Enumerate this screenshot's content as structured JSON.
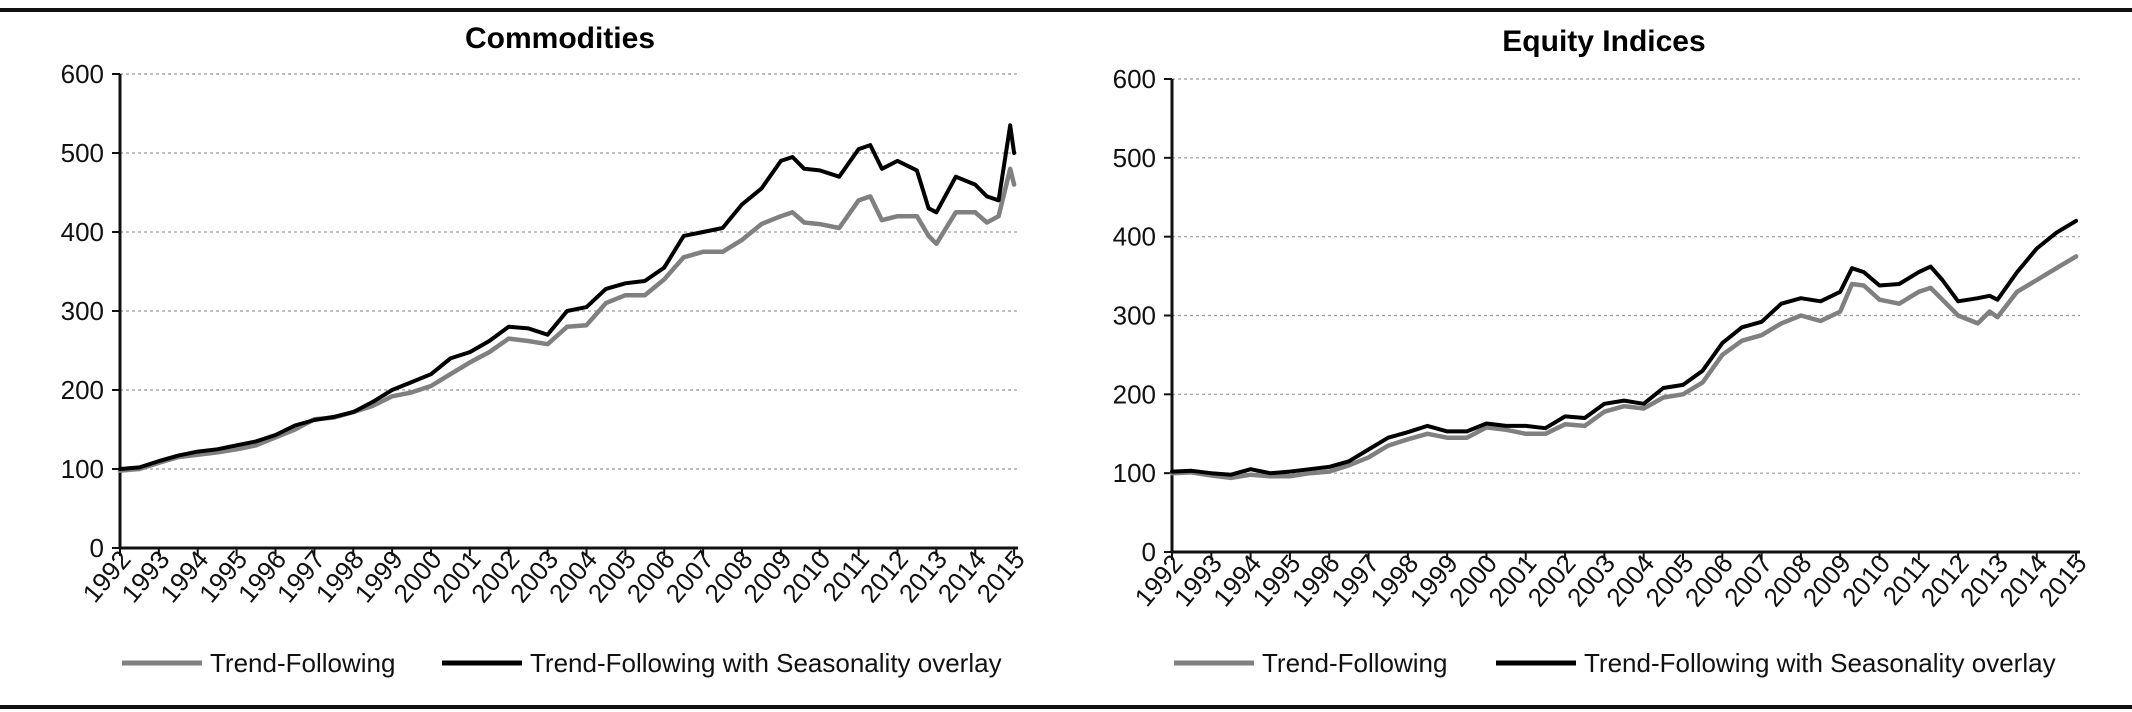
{
  "chart_data": [
    {
      "type": "line",
      "title": "Commodities",
      "xlabel": "",
      "ylabel": "",
      "ylim": [
        0,
        600
      ],
      "yticks": [
        0,
        100,
        200,
        300,
        400,
        500,
        600
      ],
      "xlim": [
        1992,
        2015.1
      ],
      "xticks": [
        "1992",
        "1993",
        "1994",
        "1995",
        "1996",
        "1997",
        "1998",
        "1999",
        "2000",
        "2001",
        "2002",
        "2003",
        "2004",
        "2005",
        "2006",
        "2007",
        "2008",
        "2009",
        "2010",
        "2011",
        "2012",
        "2013",
        "2014",
        "2015"
      ],
      "grid": "horizontal dashed",
      "legend": "bottom",
      "series": [
        {
          "name": "Trend-Following",
          "color": "#808080",
          "x": [
            1992.0,
            1992.5,
            1993.0,
            1993.5,
            1994.0,
            1994.5,
            1995.0,
            1995.5,
            1996.0,
            1996.5,
            1997.0,
            1997.5,
            1998.0,
            1998.5,
            1999.0,
            1999.5,
            2000.0,
            2000.5,
            2001.0,
            2001.5,
            2002.0,
            2002.5,
            2003.0,
            2003.5,
            2004.0,
            2004.5,
            2005.0,
            2005.5,
            2006.0,
            2006.5,
            2007.0,
            2007.5,
            2008.0,
            2008.5,
            2009.0,
            2009.3,
            2009.6,
            2010.0,
            2010.5,
            2011.0,
            2011.3,
            2011.6,
            2012.0,
            2012.5,
            2012.8,
            2013.0,
            2013.5,
            2014.0,
            2014.3,
            2014.6,
            2014.9,
            2015.0
          ],
          "values": [
            98,
            100,
            108,
            115,
            118,
            121,
            125,
            130,
            140,
            150,
            163,
            165,
            172,
            180,
            192,
            197,
            205,
            220,
            235,
            248,
            265,
            262,
            258,
            280,
            282,
            310,
            320,
            320,
            340,
            368,
            375,
            375,
            390,
            410,
            420,
            425,
            412,
            410,
            405,
            440,
            445,
            415,
            420,
            420,
            395,
            385,
            425,
            425,
            412,
            420,
            480,
            460
          ]
        },
        {
          "name": "Trend-Following with Seasonality overlay",
          "color": "#000000",
          "x": [
            1992.0,
            1992.5,
            1993.0,
            1993.5,
            1994.0,
            1994.5,
            1995.0,
            1995.5,
            1996.0,
            1996.5,
            1997.0,
            1997.5,
            1998.0,
            1998.5,
            1999.0,
            1999.5,
            2000.0,
            2000.5,
            2001.0,
            2001.5,
            2002.0,
            2002.5,
            2003.0,
            2003.5,
            2004.0,
            2004.5,
            2005.0,
            2005.5,
            2006.0,
            2006.5,
            2007.0,
            2007.5,
            2008.0,
            2008.5,
            2009.0,
            2009.3,
            2009.6,
            2010.0,
            2010.5,
            2011.0,
            2011.3,
            2011.6,
            2012.0,
            2012.5,
            2012.8,
            2013.0,
            2013.5,
            2014.0,
            2014.3,
            2014.6,
            2014.9,
            2015.0
          ],
          "values": [
            100,
            102,
            110,
            117,
            122,
            125,
            130,
            135,
            143,
            155,
            162,
            166,
            172,
            185,
            200,
            210,
            220,
            240,
            248,
            262,
            280,
            278,
            270,
            300,
            305,
            328,
            335,
            338,
            355,
            395,
            400,
            405,
            435,
            455,
            490,
            495,
            480,
            478,
            470,
            505,
            510,
            480,
            490,
            478,
            430,
            425,
            470,
            460,
            445,
            440,
            535,
            500
          ]
        }
      ]
    },
    {
      "type": "line",
      "title": "Equity Indices",
      "xlabel": "",
      "ylabel": "",
      "ylim": [
        0,
        600
      ],
      "yticks": [
        0,
        100,
        200,
        300,
        400,
        500,
        600
      ],
      "xlim": [
        1992,
        2015.1
      ],
      "xticks": [
        "1992",
        "1993",
        "1994",
        "1995",
        "1996",
        "1997",
        "1998",
        "1999",
        "2000",
        "2001",
        "2002",
        "2003",
        "2004",
        "2005",
        "2006",
        "2007",
        "2008",
        "2009",
        "2010",
        "2011",
        "2012",
        "2013",
        "2014",
        "2015"
      ],
      "grid": "horizontal dashed",
      "legend": "bottom",
      "series": [
        {
          "name": "Trend-Following",
          "color": "#808080",
          "x": [
            1992.0,
            1992.5,
            1993.0,
            1993.5,
            1994.0,
            1994.5,
            1995.0,
            1995.5,
            1996.0,
            1996.5,
            1997.0,
            1997.5,
            1998.0,
            1998.5,
            1999.0,
            1999.5,
            2000.0,
            2000.5,
            2001.0,
            2001.5,
            2002.0,
            2002.5,
            2003.0,
            2003.5,
            2004.0,
            2004.5,
            2005.0,
            2005.5,
            2006.0,
            2006.5,
            2007.0,
            2007.5,
            2008.0,
            2008.5,
            2009.0,
            2009.3,
            2009.6,
            2010.0,
            2010.5,
            2011.0,
            2011.3,
            2011.6,
            2012.0,
            2012.5,
            2012.8,
            2013.0,
            2013.5,
            2014.0,
            2014.5,
            2015.0
          ],
          "values": [
            100,
            101,
            97,
            94,
            98,
            96,
            96,
            100,
            102,
            110,
            120,
            135,
            143,
            150,
            145,
            145,
            158,
            155,
            150,
            150,
            162,
            160,
            178,
            185,
            182,
            196,
            200,
            215,
            250,
            268,
            275,
            290,
            300,
            293,
            305,
            340,
            338,
            320,
            315,
            330,
            335,
            320,
            300,
            290,
            305,
            298,
            330,
            345,
            360,
            375
          ]
        },
        {
          "name": "Trend-Following with Seasonality overlay",
          "color": "#000000",
          "x": [
            1992.0,
            1992.5,
            1993.0,
            1993.5,
            1994.0,
            1994.5,
            1995.0,
            1995.5,
            1996.0,
            1996.5,
            1997.0,
            1997.5,
            1998.0,
            1998.5,
            1999.0,
            1999.5,
            2000.0,
            2000.5,
            2001.0,
            2001.5,
            2002.0,
            2002.5,
            2003.0,
            2003.5,
            2004.0,
            2004.5,
            2005.0,
            2005.5,
            2006.0,
            2006.5,
            2007.0,
            2007.5,
            2008.0,
            2008.5,
            2009.0,
            2009.3,
            2009.6,
            2010.0,
            2010.5,
            2011.0,
            2011.3,
            2011.6,
            2012.0,
            2012.5,
            2012.8,
            2013.0,
            2013.5,
            2014.0,
            2014.5,
            2015.0
          ],
          "values": [
            102,
            103,
            100,
            98,
            105,
            100,
            102,
            105,
            108,
            115,
            130,
            145,
            152,
            160,
            153,
            153,
            163,
            160,
            160,
            157,
            172,
            170,
            188,
            192,
            188,
            208,
            212,
            230,
            265,
            285,
            292,
            315,
            322,
            318,
            330,
            360,
            355,
            338,
            340,
            355,
            362,
            345,
            318,
            322,
            325,
            320,
            355,
            385,
            405,
            420
          ]
        }
      ]
    }
  ]
}
